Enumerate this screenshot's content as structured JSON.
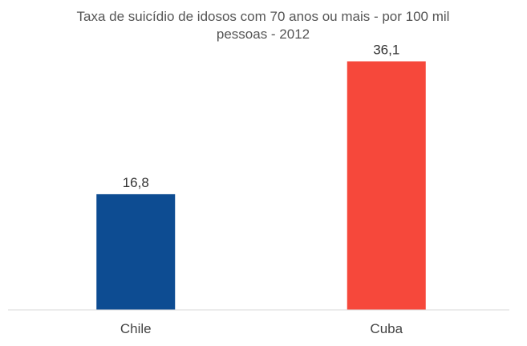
{
  "chart_data": {
    "type": "bar",
    "title_lines": [
      "Taxa de suicídio de idosos com 70 anos ou mais - por 100 mil",
      "pessoas - 2012"
    ],
    "categories": [
      "Chile",
      "Cuba"
    ],
    "values": [
      16.8,
      36.1
    ],
    "value_labels": [
      "16,8",
      "36,1"
    ],
    "colors": [
      "#0d4c92",
      "#f6483b"
    ],
    "xlabel": "",
    "ylabel": "",
    "ylim": [
      0,
      40
    ],
    "grid": false,
    "legend": "none"
  }
}
